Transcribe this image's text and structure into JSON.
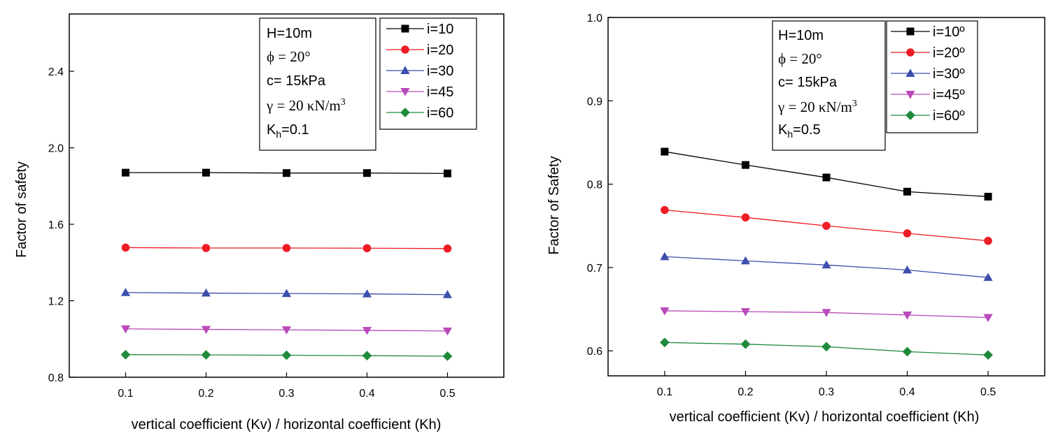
{
  "chart_data": [
    {
      "type": "line",
      "xlabel": "vertical coefficient (Kv) / horizontal coefficient (Kh)",
      "ylabel": "Factor of safety",
      "x": [
        0.1,
        0.2,
        0.3,
        0.4,
        0.5
      ],
      "xlim": [
        0.03,
        0.57
      ],
      "ylim": [
        0.8,
        2.7
      ],
      "xticks": [
        0.1,
        0.2,
        0.3,
        0.4,
        0.5
      ],
      "xtick_labels": [
        "0.1",
        "0.2",
        "0.3",
        "0.4",
        "0.5"
      ],
      "yticks": [
        0.8,
        1.2,
        1.6,
        2.0,
        2.4
      ],
      "ytick_labels": [
        "0.8",
        "1.2",
        "1.6",
        "2.0",
        "2.4"
      ],
      "legend_position": "top-right",
      "annotation": {
        "line1": "H=10m",
        "line2": "ϕ = 20°",
        "line3": "c= 15kPa",
        "line4_pre": "γ = 20 κN/m",
        "line4_sup": "3",
        "line5_pre": "K",
        "line5_sub": "h",
        "line5_post": "=0.1"
      },
      "series": [
        {
          "name": "i=10",
          "color": "#000000",
          "marker": "square",
          "values": [
            1.87,
            1.87,
            1.868,
            1.868,
            1.866
          ]
        },
        {
          "name": "i=20",
          "color": "#ee1c24",
          "marker": "circle",
          "values": [
            1.478,
            1.476,
            1.476,
            1.475,
            1.473
          ]
        },
        {
          "name": "i=30",
          "color": "#3c4eab",
          "marker": "triangle-up",
          "values": [
            1.243,
            1.24,
            1.238,
            1.236,
            1.232
          ]
        },
        {
          "name": "i=45",
          "color": "#b94aba",
          "marker": "triangle-down",
          "values": [
            1.053,
            1.05,
            1.048,
            1.045,
            1.042
          ]
        },
        {
          "name": "i=60",
          "color": "#1f8a3b",
          "marker": "diamond",
          "values": [
            0.918,
            0.917,
            0.915,
            0.913,
            0.91
          ]
        }
      ]
    },
    {
      "type": "line",
      "xlabel": "vertical coefficient (Kv) / horizontal coefficient (Kh)",
      "ylabel": "Factor of Safety",
      "x": [
        0.1,
        0.2,
        0.3,
        0.4,
        0.5
      ],
      "xlim": [
        0.03,
        0.57
      ],
      "ylim": [
        0.57,
        1.0
      ],
      "xticks": [
        0.1,
        0.2,
        0.3,
        0.4,
        0.5
      ],
      "xtick_labels": [
        "0.1",
        "0.2",
        "0.3",
        "0.4",
        "0.5"
      ],
      "yticks": [
        0.6,
        0.7,
        0.8,
        0.9,
        1.0
      ],
      "ytick_labels": [
        "0.6",
        "0.7",
        "0.8",
        "0.9",
        "1.0"
      ],
      "legend_position": "top-right",
      "annotation": {
        "line1": "H=10m",
        "line2": "ϕ = 20°",
        "line3": "c= 15kPa",
        "line4_pre": "γ = 20 κN/m",
        "line4_sup": "3",
        "line5_pre": "K",
        "line5_sub": "h",
        "line5_post": "=0.5"
      },
      "series": [
        {
          "name": "i=10º",
          "color": "#000000",
          "marker": "square",
          "values": [
            0.839,
            0.823,
            0.808,
            0.791,
            0.785
          ]
        },
        {
          "name": "i=20º",
          "color": "#ee1c24",
          "marker": "circle",
          "values": [
            0.769,
            0.76,
            0.75,
            0.741,
            0.732
          ]
        },
        {
          "name": "i=30º",
          "color": "#3c4eab",
          "marker": "triangle-up",
          "values": [
            0.713,
            0.708,
            0.703,
            0.697,
            0.688
          ]
        },
        {
          "name": "i=45º",
          "color": "#b94aba",
          "marker": "triangle-down",
          "values": [
            0.648,
            0.647,
            0.646,
            0.643,
            0.64
          ]
        },
        {
          "name": "i=60º",
          "color": "#1f8a3b",
          "marker": "diamond",
          "values": [
            0.61,
            0.608,
            0.605,
            0.599,
            0.595
          ]
        }
      ]
    }
  ]
}
